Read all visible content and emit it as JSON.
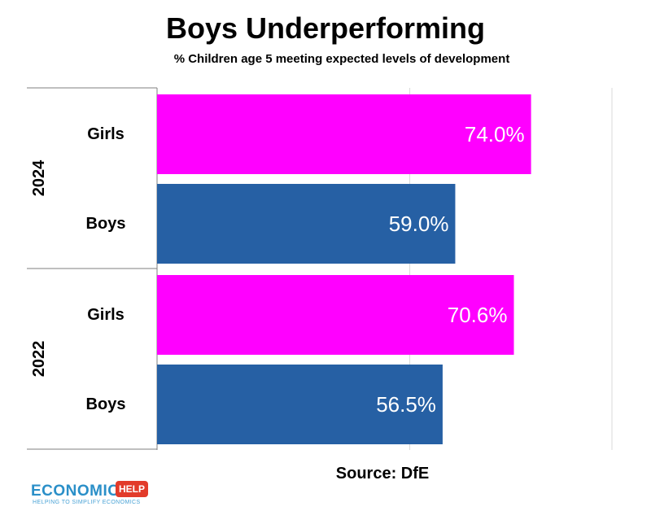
{
  "chart_data": {
    "type": "bar",
    "orientation": "horizontal",
    "title": "Boys Underperforming",
    "subtitle": "% Children age 5 meeting expected levels of development",
    "groups": [
      {
        "label": "2024",
        "bars": [
          {
            "category": "Girls",
            "value": 74.0,
            "value_label": "74.0%",
            "color": "#ff00ff"
          },
          {
            "category": "Boys",
            "value": 59.0,
            "value_label": "59.0%",
            "color": "#2660a4"
          }
        ]
      },
      {
        "label": "2022",
        "bars": [
          {
            "category": "Girls",
            "value": 70.6,
            "value_label": "70.6%",
            "color": "#ff00ff"
          },
          {
            "category": "Boys",
            "value": 56.5,
            "value_label": "56.5%",
            "color": "#2660a4"
          }
        ]
      }
    ],
    "xlim": [
      0,
      90
    ],
    "grid": true,
    "legend": "none",
    "source": "Source: DfE"
  },
  "logo": {
    "word": "ECONOMICS",
    "badge": "HELP",
    "tagline": "HELPING TO SIMPLIFY ECONOMICS"
  }
}
